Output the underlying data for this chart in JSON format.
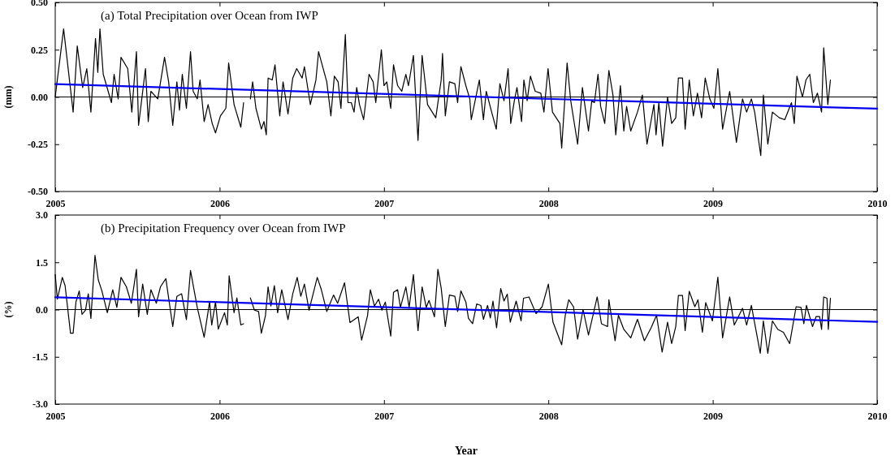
{
  "chart_data": [
    {
      "type": "line",
      "title": "(a) Total Precipitation over Ocean from IWP",
      "ylabel": "(mm)",
      "xlim": [
        2005,
        2010
      ],
      "xticks": [
        2005,
        2006,
        2007,
        2008,
        2009,
        2010
      ],
      "ylim": [
        -0.5,
        0.5
      ],
      "yticks": [
        {
          "value": -0.5,
          "label": "-0.50"
        },
        {
          "value": -0.25,
          "label": "-0.25"
        },
        {
          "value": 0,
          "label": "0.00"
        },
        {
          "value": 0.25,
          "label": "0.25"
        },
        {
          "value": 0.5,
          "label": "0.50"
        }
      ],
      "ref_lines": [
        {
          "axis": "y",
          "value": 0,
          "color": "#000000"
        }
      ],
      "series": [
        {
          "color": "#000000",
          "x": [
            2005.0,
            2005.051,
            2005.109,
            2005.134,
            2005.167,
            2005.192,
            2005.217,
            2005.245,
            2005.259,
            2005.272,
            2005.292,
            2005.342,
            2005.358,
            2005.383,
            2005.4,
            2005.441,
            2005.466,
            2005.494,
            2005.507,
            2005.549,
            2005.566,
            2005.582,
            2005.624,
            2005.665,
            2005.69,
            2005.715,
            2005.74,
            2005.756,
            2005.773,
            2005.798,
            2005.823,
            2005.839,
            2005.864,
            2005.881,
            2005.906,
            2005.93,
            2005.955,
            2005.975,
            2006.005,
            2006.038,
            2006.055,
            2006.088,
            2006.129,
            2006.146,
            2006.166,
            2006.187,
            2006.201,
            2006.221,
            2006.254,
            2006.27,
            2006.284,
            2006.295,
            2006.32,
            2006.337,
            2006.366,
            2006.386,
            2006.416,
            2006.445,
            2006.469,
            2006.502,
            2006.516,
            2006.552,
            2006.586,
            2006.602,
            2006.652,
            2006.677,
            2006.698,
            2006.721,
            2006.738,
            2006.765,
            2006.781,
            2006.801,
            2006.818,
            2006.834,
            2006.851,
            2006.876,
            2006.909,
            2006.934,
            2006.95,
            2006.984,
            2007.0,
            2007.017,
            2007.041,
            2007.058,
            2007.083,
            2007.108,
            2007.133,
            2007.149,
            2007.179,
            2007.207,
            2007.232,
            2007.265,
            2007.315,
            2007.348,
            2007.356,
            2007.373,
            2007.398,
            2007.431,
            2007.448,
            2007.468,
            2007.498,
            2007.522,
            2007.531,
            2007.58,
            2007.605,
            2007.622,
            2007.655,
            2007.683,
            2007.705,
            2007.73,
            2007.755,
            2007.771,
            2007.793,
            2007.809,
            2007.837,
            2007.851,
            2007.871,
            2007.891,
            2007.92,
            2007.954,
            2007.973,
            2007.998,
            2008.025,
            2008.07,
            2008.081,
            2008.114,
            2008.136,
            2008.178,
            2008.207,
            2008.244,
            2008.264,
            2008.28,
            2008.302,
            2008.318,
            2008.343,
            2008.368,
            2008.393,
            2008.41,
            2008.438,
            2008.459,
            2008.476,
            2008.501,
            2008.542,
            2008.572,
            2008.6,
            2008.642,
            2008.655,
            2008.672,
            2008.695,
            2008.725,
            2008.75,
            2008.775,
            2008.791,
            2008.816,
            2008.832,
            2008.857,
            2008.882,
            2008.907,
            2008.932,
            2008.954,
            2008.982,
            2009.007,
            2009.031,
            2009.06,
            2009.103,
            2009.144,
            2009.181,
            2009.206,
            2009.235,
            2009.255,
            2009.292,
            2009.308,
            2009.335,
            2009.363,
            2009.405,
            2009.438,
            2009.479,
            2009.496,
            2009.512,
            2009.546,
            2009.567,
            2009.59,
            2009.612,
            2009.637,
            2009.662,
            2009.675,
            2009.7,
            2009.716
          ],
          "values": [
            0,
            0.36,
            -0.08,
            0.27,
            0.05,
            0.15,
            -0.08,
            0.31,
            0.13,
            0.36,
            0.12,
            -0.03,
            0.12,
            -0.01,
            0.21,
            0.15,
            -0.08,
            0.24,
            -0.15,
            0.15,
            -0.13,
            0.03,
            -0.01,
            0.21,
            0.08,
            -0.15,
            0.08,
            -0.07,
            0.12,
            -0.06,
            0.24,
            0.03,
            -0.01,
            0.09,
            -0.13,
            -0.04,
            -0.14,
            -0.19,
            -0.1,
            -0.06,
            0.18,
            -0.04,
            -0.16,
            -0.03,
            null,
            -0.01,
            0.08,
            -0.06,
            -0.17,
            -0.13,
            -0.2,
            0.1,
            0.09,
            0.17,
            -0.1,
            0.08,
            -0.09,
            0.1,
            0.15,
            0.1,
            0.16,
            -0.04,
            0.09,
            0.24,
            0.08,
            -0.1,
            0.11,
            0.08,
            -0.06,
            0.33,
            -0.03,
            -0.03,
            -0.08,
            0.05,
            -0.04,
            -0.12,
            0.12,
            0.08,
            -0.03,
            0.25,
            0.06,
            0.08,
            -0.06,
            0.17,
            0.06,
            0.03,
            0.12,
            0.06,
            0.22,
            -0.23,
            0.22,
            -0.04,
            -0.11,
            0.09,
            0.23,
            -0.1,
            0.08,
            0.07,
            -0.03,
            0.16,
            0.06,
            -0.01,
            -0.12,
            0.09,
            -0.12,
            0.03,
            -0.08,
            -0.17,
            0.07,
            -0.02,
            0.15,
            -0.14,
            -0.02,
            0.05,
            -0.13,
            0.09,
            -0.02,
            0.11,
            0.03,
            0.02,
            -0.08,
            0.15,
            -0.08,
            -0.14,
            -0.27,
            0.18,
            -0.02,
            -0.25,
            0.05,
            -0.18,
            -0.02,
            -0.03,
            0.12,
            -0.05,
            -0.14,
            0.14,
            0.01,
            -0.2,
            0.06,
            -0.18,
            -0.05,
            -0.18,
            -0.08,
            0.01,
            -0.25,
            -0.04,
            -0.2,
            -0.03,
            -0.26,
            0,
            -0.14,
            -0.11,
            0.1,
            0.1,
            -0.17,
            0.09,
            -0.1,
            0.02,
            -0.11,
            0.1,
            -0.01,
            -0.06,
            0.15,
            -0.17,
            0.03,
            -0.24,
            -0.01,
            -0.08,
            -0.01,
            -0.08,
            -0.31,
            0.01,
            -0.25,
            -0.08,
            -0.11,
            -0.12,
            -0.03,
            -0.14,
            0.11,
            0,
            0.09,
            0.12,
            -0.03,
            0.02,
            -0.08,
            0.26,
            -0.04,
            0.09
          ]
        },
        {
          "type": "line",
          "color": "#0000ee",
          "x": [
            2005,
            2010
          ],
          "values": [
            0.068,
            -0.062
          ]
        }
      ]
    },
    {
      "type": "line",
      "title": "(b) Precipitation Frequency over Ocean from IWP",
      "xlabel": "Year",
      "ylabel": "(%)",
      "xlim": [
        2005,
        2010
      ],
      "xticks": [
        2005,
        2006,
        2007,
        2008,
        2009,
        2010
      ],
      "ylim": [
        -3,
        3
      ],
      "yticks": [
        {
          "value": -3,
          "label": "-3.0"
        },
        {
          "value": -1.5,
          "label": "-1.5"
        },
        {
          "value": 0,
          "label": "0.0"
        },
        {
          "value": 1.5,
          "label": "1.5"
        },
        {
          "value": 3,
          "label": "3.0"
        }
      ],
      "ref_lines": [
        {
          "axis": "y",
          "value": 0,
          "color": "#000000"
        }
      ],
      "series": [
        {
          "color": "#000000",
          "x": [
            2005.0,
            2005.013,
            2005.043,
            2005.06,
            2005.093,
            2005.109,
            2005.126,
            2005.146,
            2005.163,
            2005.184,
            2005.201,
            2005.217,
            2005.242,
            2005.262,
            2005.284,
            2005.317,
            2005.35,
            2005.375,
            2005.4,
            2005.433,
            2005.463,
            2005.494,
            2005.507,
            2005.532,
            2005.56,
            2005.582,
            2005.615,
            2005.64,
            2005.673,
            2005.715,
            2005.74,
            2005.769,
            2005.798,
            2005.823,
            2005.864,
            2005.906,
            2005.939,
            2005.952,
            2005.975,
            2005.992,
            2006.03,
            2006.047,
            2006.058,
            2006.088,
            2006.105,
            2006.129,
            2006.146,
            2006.166,
            2006.187,
            2006.212,
            2006.237,
            2006.254,
            2006.279,
            2006.295,
            2006.312,
            2006.333,
            2006.353,
            2006.378,
            2006.416,
            2006.445,
            2006.472,
            2006.494,
            2006.516,
            2006.544,
            2006.594,
            2006.619,
            2006.652,
            2006.693,
            2006.718,
            2006.76,
            2006.793,
            2006.843,
            2006.864,
            2006.9,
            2006.917,
            2006.942,
            2006.967,
            2006.987,
            2007.008,
            2007.041,
            2007.058,
            2007.083,
            2007.1,
            2007.133,
            2007.153,
            2007.179,
            2007.207,
            2007.232,
            2007.257,
            2007.274,
            2007.307,
            2007.328,
            2007.348,
            2007.373,
            2007.398,
            2007.431,
            2007.448,
            2007.468,
            2007.498,
            2007.514,
            2007.539,
            2007.564,
            2007.589,
            2007.605,
            2007.63,
            2007.647,
            2007.663,
            2007.685,
            2007.71,
            2007.73,
            2007.75,
            2007.768,
            2007.804,
            2007.834,
            2007.849,
            2007.882,
            2007.925,
            2007.962,
            2008.0,
            2008.028,
            2008.081,
            2008.103,
            2008.124,
            2008.153,
            2008.178,
            2008.211,
            2008.244,
            2008.297,
            2008.323,
            2008.36,
            2008.368,
            2008.406,
            2008.426,
            2008.459,
            2008.501,
            2008.542,
            2008.584,
            2008.625,
            2008.658,
            2008.692,
            2008.725,
            2008.75,
            2008.775,
            2008.791,
            2008.816,
            2008.832,
            2008.857,
            2008.891,
            2008.91,
            2008.937,
            2008.957,
            2008.998,
            2009.031,
            2009.06,
            2009.103,
            2009.131,
            2009.181,
            2009.206,
            2009.235,
            2009.289,
            2009.308,
            2009.335,
            2009.363,
            2009.396,
            2009.43,
            2009.468,
            2009.507,
            2009.537,
            2009.554,
            2009.57,
            2009.607,
            2009.629,
            2009.65,
            2009.662,
            2009.675,
            2009.695,
            2009.703,
            2009.716
          ],
          "values": [
            1.11,
            0.33,
            1.02,
            0.76,
            -0.75,
            -0.75,
            0.24,
            0.59,
            -0.15,
            -0.02,
            0.5,
            -0.28,
            1.72,
            0.94,
            0.59,
            -0.1,
            0.63,
            0.07,
            1.02,
            0.72,
            0.2,
            1.28,
            -0.23,
            0.81,
            -0.15,
            0.63,
            0.2,
            0.72,
            0.98,
            -0.54,
            0.42,
            0.5,
            -0.32,
            1.24,
            0.07,
            -0.88,
            0.24,
            -0.49,
            0.24,
            -0.62,
            -0.1,
            -0.49,
            1.07,
            -0.1,
            0.37,
            -0.49,
            -0.45,
            null,
            0.37,
            -0.02,
            -0.06,
            -0.75,
            -0.19,
            0.72,
            0.11,
            0.76,
            -0.1,
            0.63,
            -0.32,
            0.5,
            1.02,
            0.42,
            0.81,
            -0.02,
            1.02,
            0.63,
            -0.06,
            0.46,
            0.2,
            0.85,
            -0.41,
            -0.23,
            -0.97,
            -0.19,
            0.63,
            0.11,
            0.33,
            -0.02,
            0.24,
            -0.84,
            0.55,
            0.63,
            0.07,
            0.72,
            0.07,
            1.11,
            -0.67,
            0.72,
            0.07,
            0.29,
            -0.23,
            1.28,
            0.68,
            -0.54,
            0.46,
            0.42,
            -0.06,
            0.59,
            0.24,
            -0.28,
            -0.45,
            0.18,
            0.13,
            -0.31,
            0.13,
            -0.27,
            0.27,
            -0.58,
            0.67,
            0.27,
            0.49,
            -0.4,
            0.27,
            -0.36,
            0.36,
            0.4,
            -0.13,
            0.09,
            0.81,
            -0.4,
            -1.12,
            -0.18,
            0.31,
            0.09,
            -0.94,
            0,
            -0.81,
            0.4,
            -0.45,
            -0.54,
            0.31,
            -0.99,
            -0.18,
            -0.63,
            -0.9,
            -0.31,
            -0.99,
            -0.58,
            -0.18,
            -1.35,
            -0.4,
            -1.08,
            -0.54,
            0.45,
            0.45,
            -0.67,
            0.58,
            0.09,
            0.31,
            -0.72,
            0.22,
            -0.36,
            1.03,
            -0.9,
            0.4,
            -0.49,
            0.04,
            -0.49,
            0.13,
            -1.39,
            -0.36,
            -1.39,
            -0.36,
            -0.63,
            -0.72,
            -1.08,
            0.09,
            0.07,
            -0.45,
            0.13,
            -0.54,
            -0.22,
            -0.22,
            -0.63,
            0.4,
            0.36,
            -0.63,
            0.36
          ]
        },
        {
          "type": "line",
          "color": "#0000ee",
          "x": [
            2005,
            2010
          ],
          "values": [
            0.39,
            -0.39
          ]
        }
      ]
    }
  ]
}
